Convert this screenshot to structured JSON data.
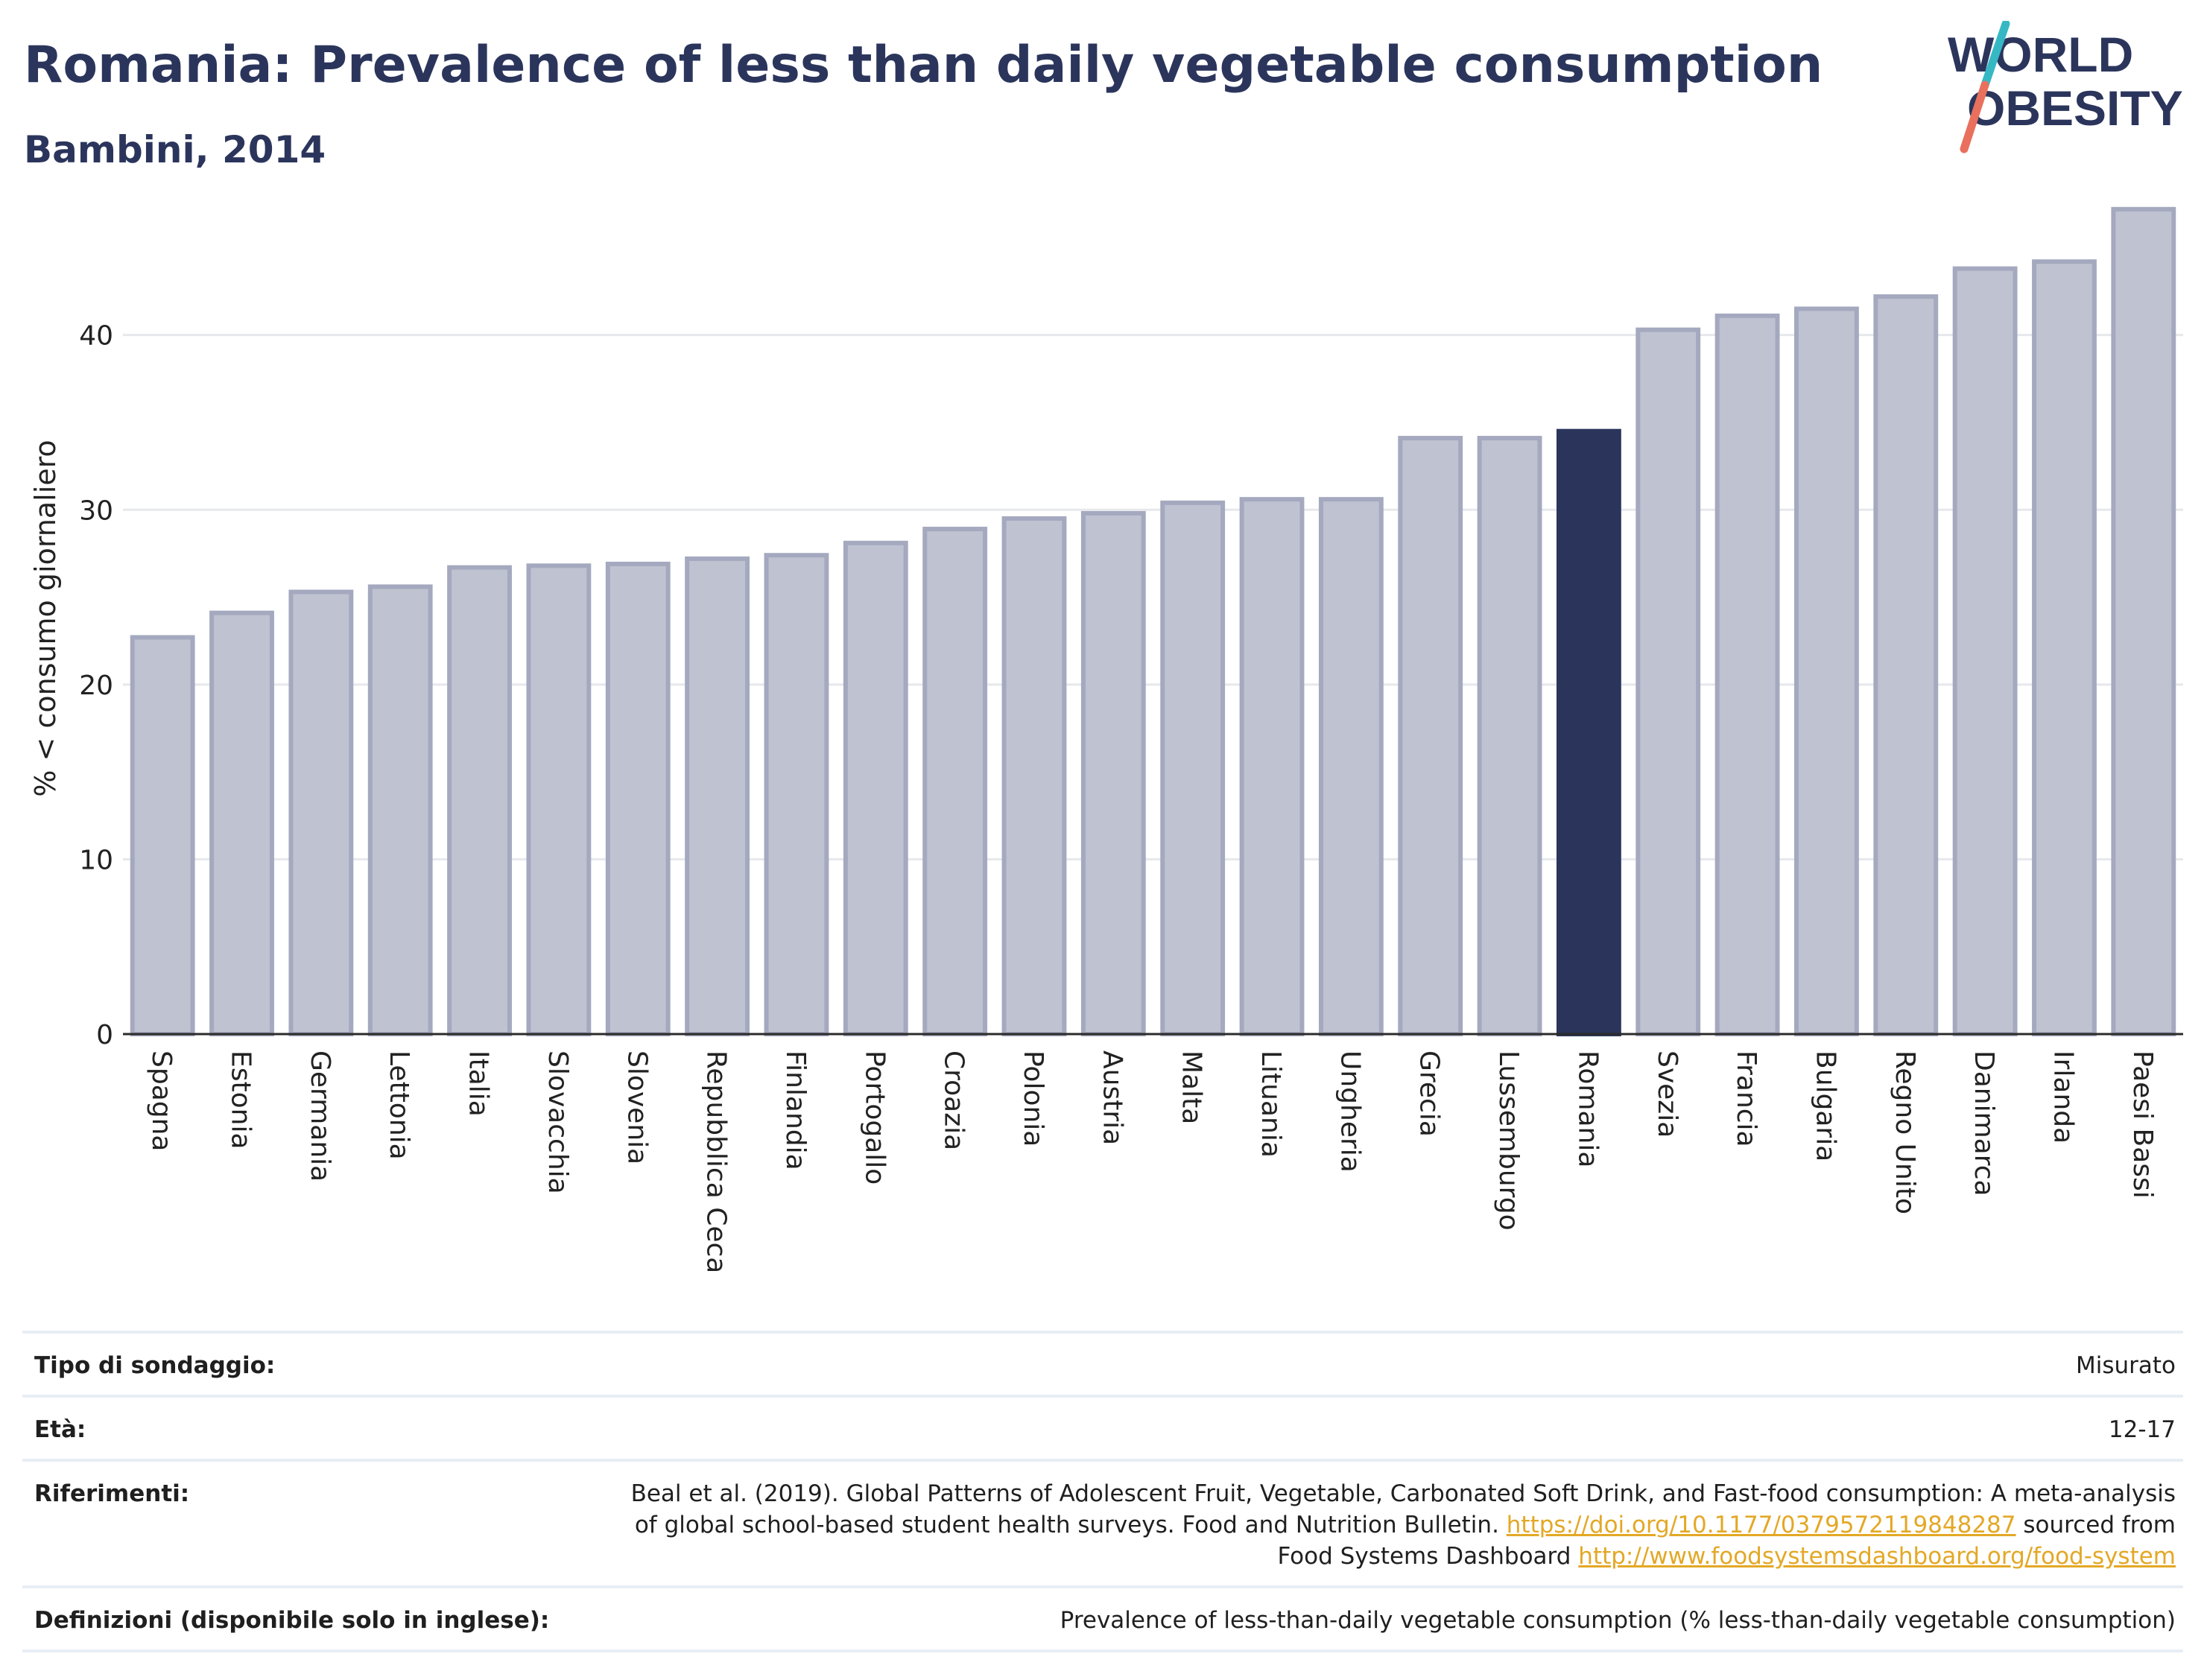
{
  "title": "Romania: Prevalence of less than daily vegetable consumption",
  "subtitle": "Bambini, 2014",
  "logo": {
    "line1": "WORLD",
    "line2": "OBESITY"
  },
  "colors": {
    "bar": "#bfc2d0",
    "bar_border": "#a4a9bf",
    "highlight": "#2b355c",
    "gridline": "#e6e8ec",
    "logo_teal": "#36b8c4",
    "logo_coral": "#e8705d",
    "link": "#e3a826"
  },
  "chart_data": {
    "type": "bar",
    "ylabel": "% < consumo giornaliero",
    "ylim": [
      0,
      48
    ],
    "yticks": [
      0,
      10,
      20,
      30,
      40
    ],
    "grid": true,
    "highlight": "Romania",
    "categories": [
      "Spagna",
      "Estonia",
      "Germania",
      "Lettonia",
      "Italia",
      "Slovacchia",
      "Slovenia",
      "Repubblica Ceca",
      "Finlandia",
      "Portogallo",
      "Croazia",
      "Polonia",
      "Austria",
      "Malta",
      "Lituania",
      "Ungheria",
      "Grecia",
      "Lussemburgo",
      "Romania",
      "Svezia",
      "Francia",
      "Bulgaria",
      "Regno Unito",
      "Danimarca",
      "Irlanda",
      "Paesi Bassi"
    ],
    "values": [
      22.7,
      24.1,
      25.3,
      25.6,
      26.7,
      26.8,
      26.9,
      27.2,
      27.4,
      28.1,
      28.9,
      29.5,
      29.8,
      30.4,
      30.6,
      30.6,
      34.1,
      34.1,
      34.5,
      40.3,
      41.1,
      41.5,
      42.2,
      43.8,
      44.2,
      47.2
    ]
  },
  "info": [
    {
      "label": "Tipo di sondaggio:",
      "value": "Misurato"
    },
    {
      "label": "Età:",
      "value": "12-17"
    },
    {
      "label": "Riferimenti:",
      "value_line1": "Beal et al. (2019). Global Patterns of Adolescent Fruit, Vegetable, Carbonated Soft Drink, and Fast-food consumption: A meta-analysis",
      "value_line2_pre": "of global school-based student health surveys. Food and Nutrition Bulletin. ",
      "link1": "https://doi.org/10.1177/0379572119848287",
      "value_line2_post": " sourced from",
      "value_line3_pre": "Food Systems Dashboard ",
      "link2": "http://www.foodsystemsdashboard.org/food-system"
    },
    {
      "label": "Definizioni (disponibile solo in inglese):",
      "value": "Prevalence of less-than-daily vegetable consumption (% less-than-daily vegetable consumption)"
    }
  ]
}
